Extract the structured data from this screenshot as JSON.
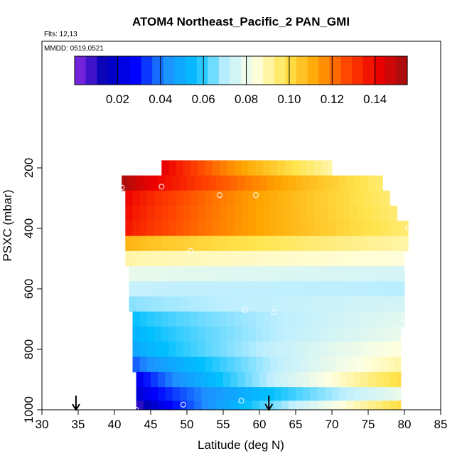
{
  "chart_data": {
    "type": "heatmap",
    "title": "ATOM4 Northeast_Pacific_2 PAN_GMI",
    "flights_note": "Flts: 12,13",
    "dates_note": "MMDD: 0519,0521",
    "xlabel": "Latitude (deg N)",
    "ylabel": "PSXC (mbar)",
    "xlim": [
      30,
      85
    ],
    "ylim": [
      1000,
      0
    ],
    "x_ticks": [
      30,
      35,
      40,
      45,
      50,
      55,
      60,
      65,
      70,
      75,
      80,
      85
    ],
    "y_ticks": [
      200,
      400,
      600,
      800,
      1000
    ],
    "colorbar": {
      "min": 0.0,
      "max": 0.155,
      "ticks": [
        0.02,
        0.04,
        0.06,
        0.08,
        0.1,
        0.12,
        0.14
      ],
      "tick_labels": [
        "0.02",
        "0.04",
        "0.06",
        "0.08",
        "0.10",
        "0.12",
        "0.14"
      ]
    },
    "palette": [
      "#8a2be2",
      "#0000b4",
      "#0000ff",
      "#1e90ff",
      "#00bfff",
      "#bfefff",
      "#ffffe0",
      "#ffe44d",
      "#ffa500",
      "#ff4500",
      "#ee0000",
      "#a01010"
    ],
    "rows": [
      {
        "p_top": 175,
        "p_bot": 225,
        "lat_start": 46.5,
        "lat_end": 70,
        "v_start": 0.146,
        "v_end": 0.09
      },
      {
        "p_top": 225,
        "p_bot": 275,
        "lat_start": 41,
        "lat_end": 77,
        "v_start": 0.155,
        "v_end": 0.095
      },
      {
        "p_top": 275,
        "p_bot": 325,
        "lat_start": 41.5,
        "lat_end": 78,
        "v_start": 0.142,
        "v_end": 0.095
      },
      {
        "p_top": 325,
        "p_bot": 375,
        "lat_start": 41.5,
        "lat_end": 79,
        "v_start": 0.14,
        "v_end": 0.095
      },
      {
        "p_top": 375,
        "p_bot": 425,
        "lat_start": 41.5,
        "lat_end": 80.5,
        "v_start": 0.138,
        "v_end": 0.095
      },
      {
        "p_top": 425,
        "p_bot": 475,
        "lat_start": 41.5,
        "lat_end": 80.5,
        "v_start": 0.11,
        "v_end": 0.09
      },
      {
        "p_top": 475,
        "p_bot": 525,
        "lat_start": 41.5,
        "lat_end": 80,
        "v_start": 0.09,
        "v_end": 0.085
      },
      {
        "p_top": 525,
        "p_bot": 575,
        "lat_start": 42,
        "lat_end": 80,
        "v_start": 0.08,
        "v_end": 0.075
      },
      {
        "p_top": 575,
        "p_bot": 625,
        "lat_start": 42,
        "lat_end": 80,
        "v_start": 0.072,
        "v_end": 0.07
      },
      {
        "p_top": 625,
        "p_bot": 675,
        "lat_start": 42,
        "lat_end": 80,
        "v_start": 0.066,
        "v_end": 0.075
      },
      {
        "p_top": 675,
        "p_bot": 725,
        "lat_start": 42.5,
        "lat_end": 80,
        "v_start": 0.056,
        "v_end": 0.078
      },
      {
        "p_top": 725,
        "p_bot": 775,
        "lat_start": 42.5,
        "lat_end": 79.5,
        "v_start": 0.052,
        "v_end": 0.08
      },
      {
        "p_top": 775,
        "p_bot": 825,
        "lat_start": 42.5,
        "lat_end": 79.5,
        "v_start": 0.048,
        "v_end": 0.085
      },
      {
        "p_top": 825,
        "p_bot": 875,
        "lat_start": 42.5,
        "lat_end": 79.5,
        "v_start": 0.035,
        "v_end": 0.09
      },
      {
        "p_top": 875,
        "p_bot": 925,
        "lat_start": 43,
        "lat_end": 79.5,
        "v_start": 0.022,
        "v_end": 0.1
      },
      {
        "p_top": 925,
        "p_bot": 970,
        "lat_start": 43,
        "lat_end": 79.5,
        "v_start": 0.018,
        "v_end": 0.08
      },
      {
        "p_top": 970,
        "p_bot": 1000,
        "lat_start": 43,
        "lat_end": 79.5,
        "v_start": 0.005,
        "v_end": 0.1
      }
    ],
    "circles": [
      {
        "lat": 41,
        "p": 265
      },
      {
        "lat": 46.5,
        "p": 262
      },
      {
        "lat": 54.5,
        "p": 290
      },
      {
        "lat": 59.5,
        "p": 290
      },
      {
        "lat": 80.5,
        "p": 400
      },
      {
        "lat": 50.5,
        "p": 475
      },
      {
        "lat": 58,
        "p": 670
      },
      {
        "lat": 62,
        "p": 678
      },
      {
        "lat": 80,
        "p": 700
      },
      {
        "lat": 74,
        "p": 865
      },
      {
        "lat": 57.5,
        "p": 970
      },
      {
        "lat": 49.5,
        "p": 983
      },
      {
        "lat": 43,
        "p": 1000
      }
    ],
    "arrows": [
      {
        "lat": 34.7
      },
      {
        "lat": 61.3
      }
    ]
  }
}
